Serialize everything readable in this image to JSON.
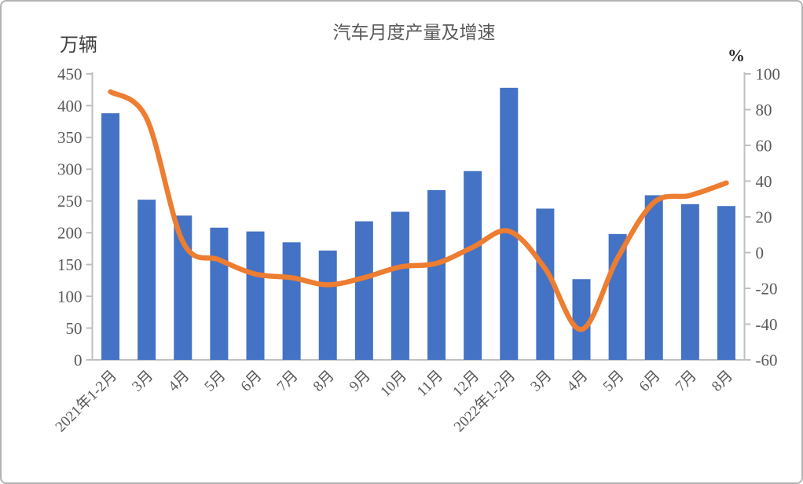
{
  "figure": {
    "title": "汽车月度产量及增速"
  },
  "chart_data": {
    "type": "combo-bar-line",
    "title": "汽车月度产量及增速",
    "categories": [
      "2021年1-2月",
      "3月",
      "4月",
      "5月",
      "6月",
      "7月",
      "8月",
      "9月",
      "10月",
      "11月",
      "12月",
      "2022年1-2月",
      "3月",
      "4月",
      "5月",
      "6月",
      "7月",
      "8月"
    ],
    "series": [
      {
        "name": "汽车月度产量",
        "type": "bar",
        "axis": "left",
        "color": "#4472C4",
        "values": [
          388,
          252,
          227,
          208,
          202,
          185,
          172,
          218,
          233,
          267,
          297,
          428,
          238,
          127,
          198,
          259,
          245,
          242
        ]
      },
      {
        "name": "增速",
        "type": "line",
        "axis": "right",
        "color": "#ED7D31",
        "values": [
          90,
          75,
          6,
          -4,
          -12,
          -14,
          -18,
          -14,
          -8,
          -6,
          3,
          12,
          -9,
          -43,
          -3,
          28,
          32,
          39
        ]
      }
    ],
    "left_axis": {
      "unit": "万辆",
      "min": 0,
      "max": 450,
      "step": 50,
      "tick_labels": [
        "450",
        "400",
        "350",
        "300",
        "250",
        "200",
        "150",
        "100",
        "50",
        "0"
      ]
    },
    "right_axis": {
      "unit": "%",
      "min": -60,
      "max": 100,
      "step": 20,
      "tick_labels": [
        "100",
        "80",
        "60",
        "40",
        "20",
        "0",
        "-20",
        "-40",
        "-60"
      ]
    },
    "legend": {
      "visible": false
    },
    "grid": false,
    "styles": {
      "axis_line_color": "#BFBFBF",
      "text_color": "#595959",
      "bar_color": "#4472C4",
      "line_color": "#ED7D31"
    }
  }
}
